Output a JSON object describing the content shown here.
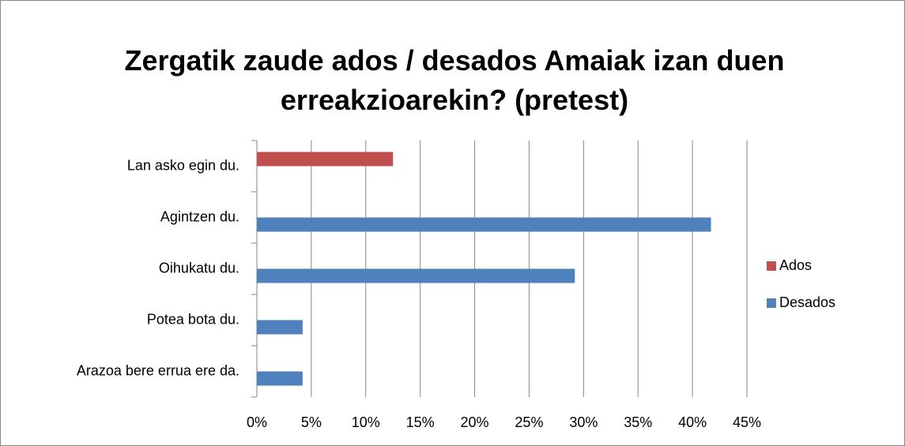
{
  "chart_data": {
    "type": "hbar",
    "title": "Zergatik zaude ados / desados Amaiak izan duen erreakzioarekin?  (pretest)",
    "categories": [
      "Lan asko egin du.",
      "Agintzen du.",
      "Oihukatu du.",
      "Potea bota du.",
      "Arazoa bere errua ere da."
    ],
    "series": [
      {
        "name": "Ados",
        "color": "#c0504d",
        "values": [
          12.5,
          null,
          null,
          null,
          null
        ]
      },
      {
        "name": "Desados",
        "color": "#4f81bd",
        "values": [
          null,
          41.7,
          29.2,
          4.2,
          4.2
        ]
      }
    ],
    "xlim": [
      0,
      45
    ],
    "xticks": [
      {
        "value": 0,
        "label": "0%"
      },
      {
        "value": 5,
        "label": "5%"
      },
      {
        "value": 10,
        "label": "10%"
      },
      {
        "value": 15,
        "label": "15%"
      },
      {
        "value": 20,
        "label": "20%"
      },
      {
        "value": 25,
        "label": "25%"
      },
      {
        "value": 30,
        "label": "30%"
      },
      {
        "value": 35,
        "label": "35%"
      },
      {
        "value": 40,
        "label": "40%"
      },
      {
        "value": 45,
        "label": "45%"
      }
    ],
    "grid": true,
    "legend": "right"
  }
}
